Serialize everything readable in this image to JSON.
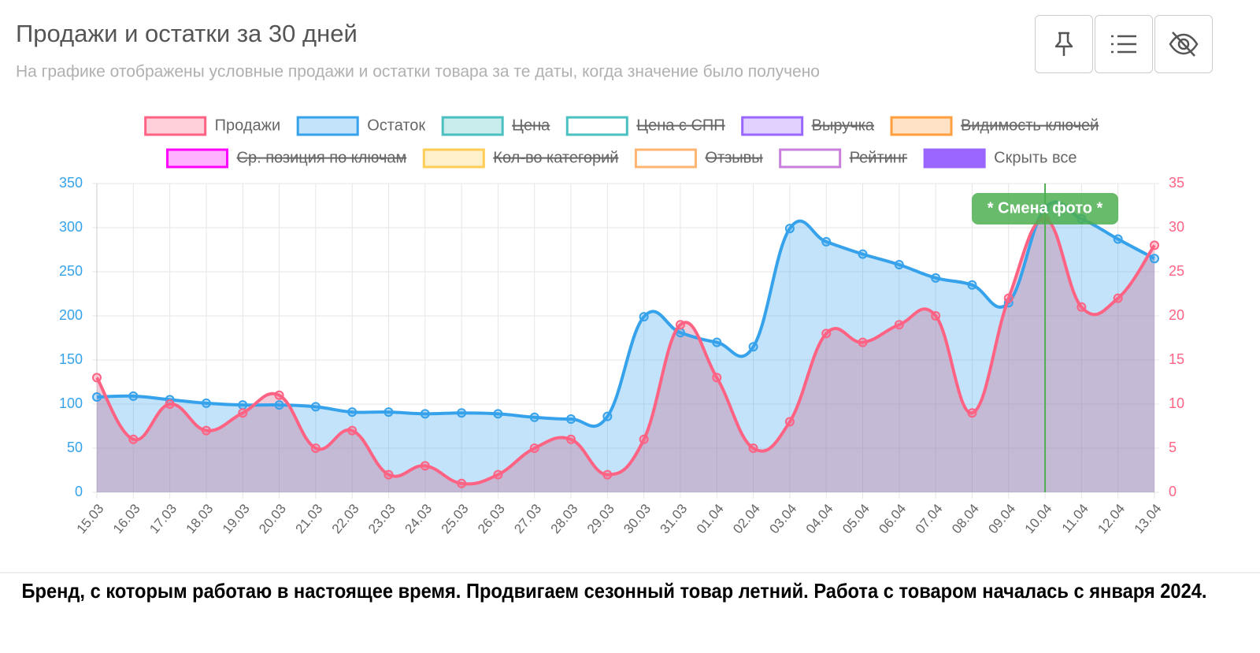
{
  "chart_data": {
    "type": "line",
    "title": "Продажи и остатки за 30 дней",
    "subtitle": "На графике отображены условные продажи и остатки товара за те даты, когда значение было получено",
    "categories": [
      "15.03",
      "16.03",
      "17.03",
      "18.03",
      "19.03",
      "20.03",
      "21.03",
      "22.03",
      "23.03",
      "24.03",
      "25.03",
      "26.03",
      "27.03",
      "28.03",
      "29.03",
      "30.03",
      "31.03",
      "01.04",
      "02.04",
      "03.04",
      "04.04",
      "05.04",
      "06.04",
      "07.04",
      "08.04",
      "09.04",
      "10.04",
      "11.04",
      "12.04",
      "13.04"
    ],
    "series": [
      {
        "name": "Продажи",
        "color": "#ff6384",
        "axis": "y2",
        "values": [
          13,
          6,
          10,
          7,
          9,
          11,
          5,
          7,
          2,
          3,
          1,
          2,
          5,
          6,
          2,
          6,
          19,
          13,
          5,
          8,
          18,
          17,
          19,
          20,
          9,
          22,
          31,
          21,
          22,
          28
        ]
      },
      {
        "name": "Остаток",
        "color": "#36a2eb",
        "values": [
          108,
          109,
          105,
          101,
          99,
          99,
          97,
          91,
          91,
          89,
          90,
          89,
          85,
          83,
          86,
          199,
          181,
          170,
          165,
          299,
          284,
          270,
          258,
          243,
          235,
          215,
          322,
          310,
          287,
          265
        ]
      }
    ],
    "legend_hidden": [
      {
        "name": "Цена",
        "color": "#4bc0c0",
        "filled": true
      },
      {
        "name": "Цена с СПП",
        "color": "#4bc0c0",
        "filled": false
      },
      {
        "name": "Выручка",
        "color": "#9966ff",
        "filled": true
      },
      {
        "name": "Видимость ключей",
        "color": "#ff9f40",
        "filled": true
      },
      {
        "name": "Ср. позиция по ключам",
        "color": "#ff00ff",
        "filled": true
      },
      {
        "name": "Кол-во категорий",
        "color": "#ffcd56",
        "filled": true
      },
      {
        "name": "Отзывы",
        "color": "#ffb572",
        "filled": false
      },
      {
        "name": "Рейтинг",
        "color": "#c97fdb",
        "filled": false
      }
    ],
    "hide_all": {
      "name": "Скрыть все",
      "color": "#9966ff"
    },
    "ylim": [
      0,
      350
    ],
    "yticks": [
      0,
      50,
      100,
      150,
      200,
      250,
      300,
      350
    ],
    "y2lim": [
      0,
      35
    ],
    "y2ticks": [
      0,
      5,
      10,
      15,
      20,
      25,
      30,
      35
    ],
    "grid": true,
    "annotation": {
      "label": "* Смена фото *",
      "category": "10.04",
      "color": "#4caf50"
    },
    "caption": "Бренд, с которым работаю в настоящее время. Продвигаем сезонный товар летний. Работа с товаром началась с января 2024."
  }
}
